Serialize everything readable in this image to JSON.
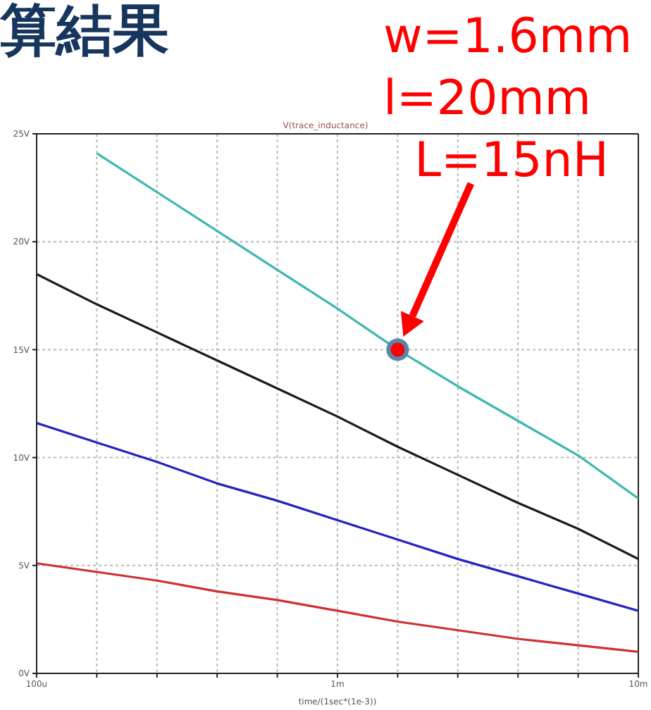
{
  "chart_data": {
    "type": "line",
    "title": "算結果",
    "subtitle": "V(trace_inductance)",
    "xlabel": "time/(1sec*(1e-3))",
    "annotations": [
      "w=1.6mm",
      "l=20mm",
      "L=15nH"
    ],
    "grid": true,
    "legend": false,
    "marker": "none",
    "line_style": "solid",
    "categories": [
      "100u",
      null,
      null,
      null,
      null,
      "1m",
      null,
      null,
      null,
      null,
      "10m"
    ],
    "series": [
      {
        "color": "#3cb8b0",
        "values": [
          null,
          24.1,
          22.3,
          20.5,
          18.7,
          16.9,
          15.0,
          13.3,
          11.7,
          10.1,
          8.1
        ]
      },
      {
        "color": "#1a1a1a",
        "values": [
          18.5,
          17.1,
          15.8,
          14.5,
          13.2,
          11.9,
          10.5,
          9.2,
          7.9,
          6.7,
          5.3
        ]
      },
      {
        "color": "#2323c0",
        "values": [
          11.6,
          10.7,
          9.8,
          8.8,
          8.0,
          7.1,
          6.2,
          5.3,
          4.5,
          3.7,
          2.9
        ]
      },
      {
        "color": "#d03030",
        "values": [
          5.1,
          4.7,
          4.3,
          3.8,
          3.4,
          2.9,
          2.4,
          2.0,
          1.6,
          1.3,
          1.0
        ]
      },
      {
        "type": "scatter",
        "marker": "circle",
        "color": "#ff0000",
        "values": [
          null,
          null,
          null,
          null,
          null,
          null,
          15,
          null,
          null,
          null,
          null
        ]
      }
    ],
    "ylim": [
      0,
      25
    ],
    "yticks": [
      {
        "value": 0,
        "label": "0V"
      },
      {
        "value": 5,
        "label": "5V"
      },
      {
        "value": 10,
        "label": "10V"
      },
      {
        "value": 15,
        "label": "15V"
      },
      {
        "value": 20,
        "label": "20V"
      },
      {
        "value": 25,
        "label": "25V"
      }
    ]
  }
}
